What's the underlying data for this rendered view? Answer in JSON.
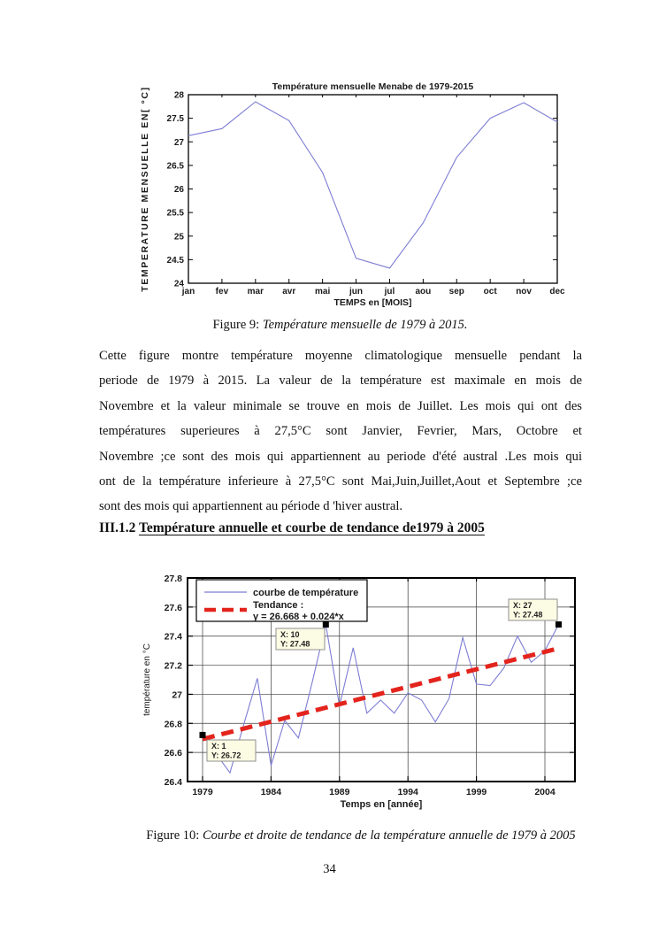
{
  "page": {
    "number": "34"
  },
  "figure9_caption": {
    "prefix": "Figure 9: ",
    "italic": "Température mensuelle de 1979 à 2015."
  },
  "figure10_caption": {
    "prefix": "Figure 10: ",
    "italic": "Courbe et droite de tendance de la température annuelle de 1979 à 2005"
  },
  "paragraph_lines": [
    "Cette figure montre température moyenne climatologique mensuelle  pendant la",
    "periode de 1979 à 2015. La valeur de la température est maximale en mois de",
    "Novembre et la valeur minimale se trouve en mois de Juillet. Les mois qui ont des",
    "températures superieures à 27,5°C sont Janvier, Fevrier, Mars, Octobre et",
    "Novembre ;ce sont des mois qui appartiennent au periode d'été austral .Les mois  qui",
    "ont  de la température inferieure à 27,5°C sont Mai,Juin,Juillet,Aout et Septembre ;ce",
    "sont des mois qui appartiennent au période d 'hiver austral."
  ],
  "heading": {
    "number": "III.1.2",
    "title": "Température annuelle et courbe de tendance de1979 à 2005"
  },
  "colors": {
    "curve_blue": "#7d7dd4",
    "trend_red": "#e3241d",
    "datatip_bg": "#fcfbe3",
    "datatip_border": "#8f8f8f",
    "grid": "#3a3a3a",
    "axis": "#000000"
  },
  "chart_data": [
    {
      "type": "line",
      "title": "Température mensuelle Menabe de 1979-2015",
      "xlabel": "TEMPS en [MOIS]",
      "ylabel": "TEMPERATURE MENSUELLE EN[ °C]",
      "categories": [
        "jan",
        "fev",
        "mar",
        "avr",
        "mai",
        "jun",
        "jul",
        "aou",
        "sep",
        "oct",
        "nov",
        "dec"
      ],
      "values": [
        27.13,
        27.28,
        27.85,
        27.45,
        26.35,
        24.53,
        24.32,
        25.28,
        26.67,
        27.5,
        27.83,
        27.42
      ],
      "ylim": [
        24,
        28
      ],
      "yticks": [
        24,
        24.5,
        25,
        25.5,
        26,
        26.5,
        27,
        27.5,
        28
      ],
      "grid": false,
      "legend_position": "none"
    },
    {
      "type": "line",
      "title": "",
      "xlabel": "Temps en [année]",
      "ylabel": "température en °C",
      "x": [
        1979,
        1980,
        1981,
        1982,
        1983,
        1984,
        1985,
        1986,
        1987,
        1988,
        1989,
        1990,
        1991,
        1992,
        1993,
        1994,
        1995,
        1996,
        1997,
        1998,
        1999,
        2000,
        2001,
        2002,
        2003,
        2004,
        2005
      ],
      "xticks": [
        1979,
        1984,
        1989,
        1994,
        1999,
        2004
      ],
      "ylim": [
        26.4,
        27.8
      ],
      "yticks": [
        26.4,
        26.6,
        26.8,
        27,
        27.2,
        27.4,
        27.6,
        27.8
      ],
      "grid": true,
      "legend_position": "top-left",
      "series": [
        {
          "name": "courbe de température",
          "style": "solid",
          "values": [
            26.72,
            26.59,
            26.46,
            26.79,
            27.11,
            26.51,
            26.82,
            26.7,
            27.08,
            27.48,
            26.92,
            27.32,
            26.87,
            26.96,
            26.87,
            27.01,
            26.96,
            26.81,
            26.97,
            27.39,
            27.07,
            27.06,
            27.18,
            27.4,
            27.22,
            27.3,
            27.48
          ]
        },
        {
          "name": "Tendance",
          "style": "dashed",
          "equation": "y = 26.668 + 0.024*x",
          "intercept": 26.668,
          "slope": 0.024,
          "x_index_range": [
            1,
            27
          ]
        }
      ],
      "legend_entries": [
        {
          "label_lines": [
            "courbe de température"
          ],
          "series": 0
        },
        {
          "label_lines": [
            "Tendance :",
            "y = 26.668 + 0.024*x"
          ],
          "series": 1
        }
      ],
      "datatips": [
        {
          "lines": [
            "X: 1",
            "Y: 26.72"
          ],
          "x_index": 1,
          "year": 1979,
          "value": 26.72
        },
        {
          "lines": [
            "X: 10",
            "Y: 27.48"
          ],
          "x_index": 10,
          "year": 1988,
          "value": 27.48
        },
        {
          "lines": [
            "X: 27",
            "Y: 27.48"
          ],
          "x_index": 27,
          "year": 2005,
          "value": 27.48
        }
      ]
    }
  ]
}
